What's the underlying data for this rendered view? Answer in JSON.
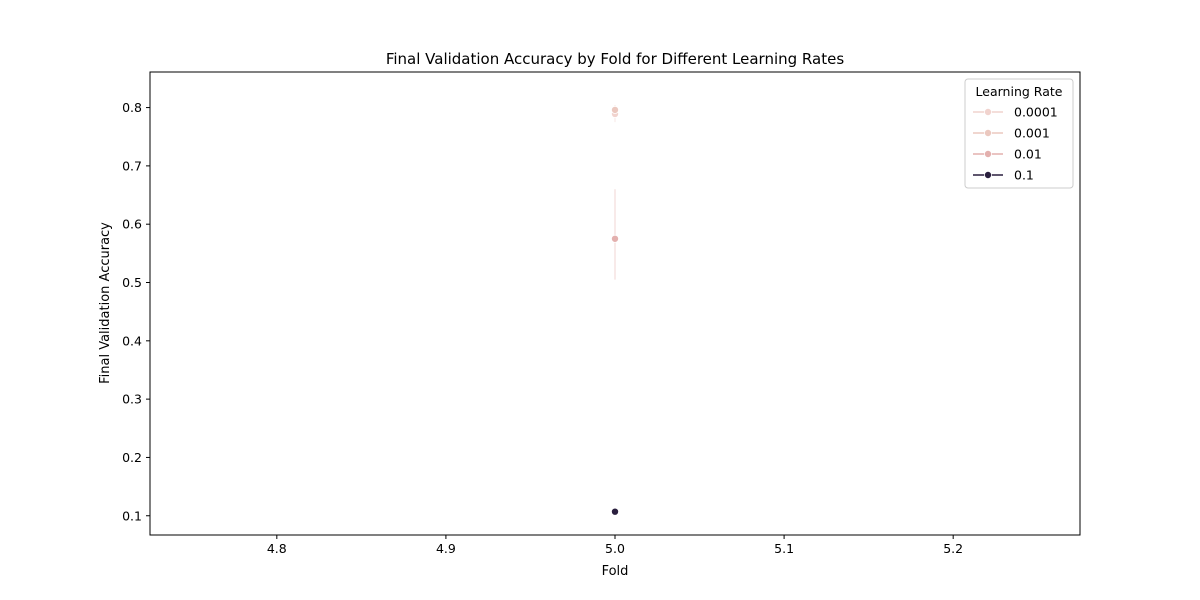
{
  "chart_data": {
    "type": "line",
    "title": "Final Validation Accuracy by Fold for Different Learning Rates",
    "xlabel": "Fold",
    "ylabel": "Final Validation Accuracy",
    "xlim": [
      4.725,
      5.275
    ],
    "ylim": [
      0.067,
      0.861
    ],
    "xticks": [
      "4.8",
      "4.9",
      "5.0",
      "5.1",
      "5.2"
    ],
    "yticks": [
      "0.1",
      "0.2",
      "0.3",
      "0.4",
      "0.5",
      "0.6",
      "0.7",
      "0.8"
    ],
    "grid": false,
    "legend": {
      "title": "Learning Rate",
      "position": "top-right"
    },
    "series": [
      {
        "name": "0.0001",
        "color": "#f1d3ce",
        "points": [
          {
            "x": 5.0,
            "y": 0.789,
            "ci": [
              0.775,
              0.803
            ]
          }
        ]
      },
      {
        "name": "0.001",
        "color": "#ebc8bf",
        "points": [
          {
            "x": 5.0,
            "y": 0.796,
            "ci": [
              0.788,
              0.804
            ]
          }
        ]
      },
      {
        "name": "0.01",
        "color": "#e3b0ae",
        "points": [
          {
            "x": 5.0,
            "y": 0.575,
            "ci": [
              0.505,
              0.66
            ]
          }
        ]
      },
      {
        "name": "0.1",
        "color": "#2a1f3e",
        "points": [
          {
            "x": 5.0,
            "y": 0.107,
            "ci": [
              0.107,
              0.107
            ]
          }
        ]
      }
    ]
  }
}
